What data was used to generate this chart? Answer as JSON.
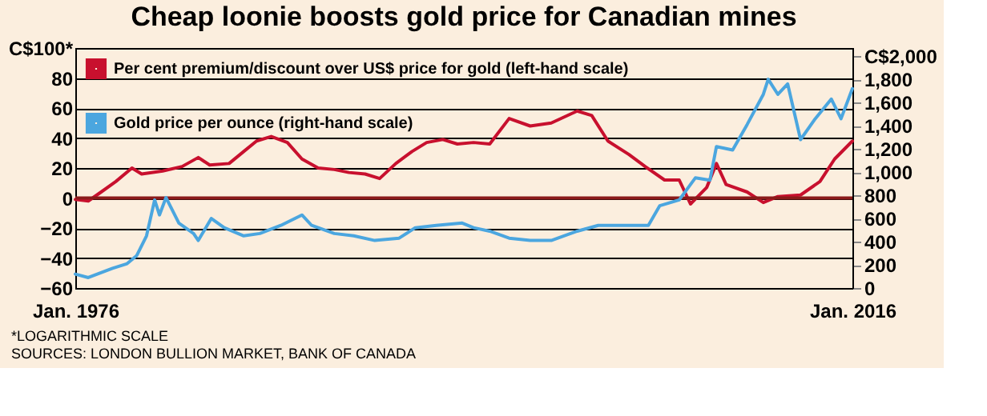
{
  "chart_data": {
    "type": "line",
    "title": "Cheap loonie boosts gold price for Canadian mines",
    "xlim": [
      "1976-01",
      "2016-01"
    ],
    "xticks": [
      {
        "value": "1976-01",
        "label": "Jan. 1976"
      },
      {
        "value": "2016-01",
        "label": "Jan. 2016"
      }
    ],
    "ylim": [
      -60,
      100
    ],
    "yticks": [
      -60,
      -40,
      -20,
      0,
      20,
      40,
      60,
      80,
      {
        "value": 100,
        "label": "C$100*"
      }
    ],
    "y2lim": [
      0,
      2070
    ],
    "y2ticks": [
      0,
      200,
      400,
      600,
      800,
      {
        "value": 1000,
        "label": "1,000"
      },
      {
        "value": 1200,
        "label": "1,200"
      },
      {
        "value": 1400,
        "label": "1,400"
      },
      {
        "value": 1600,
        "label": "1,600"
      },
      {
        "value": 1800,
        "label": "1,800"
      },
      {
        "value": 2000,
        "label": "C$2,000"
      }
    ],
    "grid": "y",
    "legend": "top left",
    "marker": "none",
    "line_style": "solid",
    "ref_lines": [
      {
        "axis": "y",
        "value": 0,
        "color": "#8b1a1a"
      }
    ],
    "annotations": [
      "*LOGARITHMIC SCALE",
      "SOURCES: LONDON BULLION MARKET, BANK OF CANADA"
    ],
    "series": [
      {
        "name": "Per cent premium/discount over US$ price for gold (left-hand scale)",
        "color": "#c8102e",
        "x": [
          "1976-01",
          "1976-09",
          "1977-05",
          "1978-02",
          "1978-12",
          "1979-06",
          "1980-07",
          "1981-07",
          "1982-05",
          "1982-12",
          "1983-12",
          "1984-09",
          "1985-05",
          "1986-02",
          "1986-12",
          "1987-09",
          "1988-07",
          "1989-05",
          "1990-02",
          "1990-12",
          "1991-09",
          "1992-07",
          "1993-05",
          "1994-02",
          "1994-12",
          "1995-09",
          "1996-07",
          "1997-05",
          "1998-05",
          "1999-06",
          "2000-07",
          "2001-11",
          "2002-08",
          "2003-06",
          "2004-07",
          "2005-05",
          "2006-05",
          "2007-02",
          "2007-09",
          "2008-07",
          "2009-01",
          "2009-07",
          "2010-08",
          "2011-06",
          "2012-03",
          "2013-05",
          "2014-05",
          "2015-02",
          "2016-01"
        ],
        "values": [
          -1,
          -2,
          4,
          11,
          20,
          16,
          18,
          21,
          27,
          22,
          23,
          31,
          38,
          41,
          37,
          26,
          20,
          19,
          17,
          16,
          13,
          23,
          31,
          37,
          39,
          36,
          37,
          36,
          53,
          48,
          50,
          58,
          55,
          38,
          29,
          21,
          12,
          12,
          -4,
          7,
          23,
          9,
          4,
          -3,
          1,
          2,
          11,
          26,
          38
        ]
      },
      {
        "name": "Gold price per ounce (right-hand scale)",
        "color": "#4ba6df",
        "axis": "y2",
        "x": [
          "1976-01",
          "1976-09",
          "1977-12",
          "1978-09",
          "1979-03",
          "1979-09",
          "1980-02",
          "1980-05",
          "1980-09",
          "1981-05",
          "1982-02",
          "1982-05",
          "1983-01",
          "1983-09",
          "1984-09",
          "1985-07",
          "1986-08",
          "1987-09",
          "1988-03",
          "1989-05",
          "1990-05",
          "1991-06",
          "1992-09",
          "1993-07",
          "1994-08",
          "1995-12",
          "1996-07",
          "1997-05",
          "1998-05",
          "1999-06",
          "2000-07",
          "2001-11",
          "2002-12",
          "2003-09",
          "2005-07",
          "2006-02",
          "2007-02",
          "2007-12",
          "2008-09",
          "2009-01",
          "2009-11",
          "2010-08",
          "2011-06",
          "2011-09",
          "2012-03",
          "2012-09",
          "2013-05",
          "2014-02",
          "2014-12",
          "2015-06",
          "2016-01"
        ],
        "values": [
          120,
          90,
          170,
          210,
          280,
          450,
          760,
          630,
          780,
          560,
          470,
          410,
          600,
          520,
          450,
          470,
          540,
          630,
          540,
          470,
          450,
          410,
          430,
          520,
          540,
          560,
          520,
          490,
          430,
          410,
          410,
          490,
          540,
          540,
          540,
          710,
          760,
          950,
          930,
          1220,
          1190,
          1410,
          1670,
          1800,
          1670,
          1760,
          1280,
          1460,
          1630,
          1460,
          1720
        ]
      }
    ]
  }
}
